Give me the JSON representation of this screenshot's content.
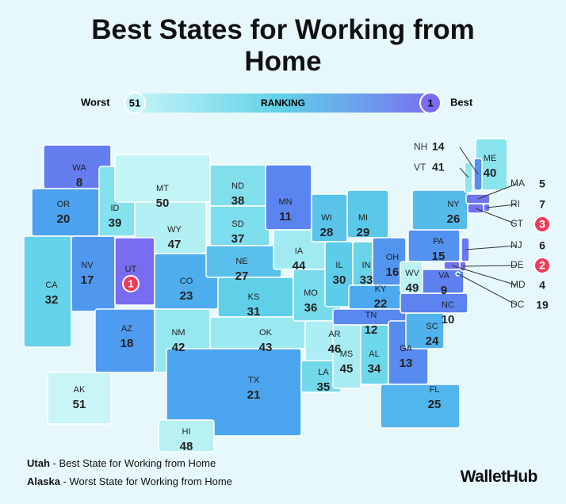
{
  "title": "Best States for Working from Home",
  "legend": {
    "worst_label": "Worst",
    "worst_rank": 51,
    "scale_label": "RANKING",
    "best_rank": 1,
    "best_label": "Best"
  },
  "states": [
    {
      "code": "WA",
      "rank": 8
    },
    {
      "code": "OR",
      "rank": 20
    },
    {
      "code": "CA",
      "rank": 32
    },
    {
      "code": "NV",
      "rank": 17
    },
    {
      "code": "ID",
      "rank": 39
    },
    {
      "code": "MT",
      "rank": 50
    },
    {
      "code": "WY",
      "rank": 47
    },
    {
      "code": "UT",
      "rank": 1
    },
    {
      "code": "CO",
      "rank": 23
    },
    {
      "code": "AZ",
      "rank": 18
    },
    {
      "code": "NM",
      "rank": 42
    },
    {
      "code": "ND",
      "rank": 38
    },
    {
      "code": "SD",
      "rank": 37
    },
    {
      "code": "NE",
      "rank": 27
    },
    {
      "code": "KS",
      "rank": 31
    },
    {
      "code": "OK",
      "rank": 43
    },
    {
      "code": "TX",
      "rank": 21
    },
    {
      "code": "MN",
      "rank": 11
    },
    {
      "code": "IA",
      "rank": 44
    },
    {
      "code": "MO",
      "rank": 36
    },
    {
      "code": "AR",
      "rank": 46
    },
    {
      "code": "LA",
      "rank": 35
    },
    {
      "code": "WI",
      "rank": 28
    },
    {
      "code": "IL",
      "rank": 30
    },
    {
      "code": "MI",
      "rank": 29
    },
    {
      "code": "IN",
      "rank": 33
    },
    {
      "code": "OH",
      "rank": 16
    },
    {
      "code": "KY",
      "rank": 22
    },
    {
      "code": "TN",
      "rank": 12
    },
    {
      "code": "MS",
      "rank": 45
    },
    {
      "code": "AL",
      "rank": 34
    },
    {
      "code": "GA",
      "rank": 13
    },
    {
      "code": "FL",
      "rank": 25
    },
    {
      "code": "SC",
      "rank": 24
    },
    {
      "code": "NC",
      "rank": 10
    },
    {
      "code": "VA",
      "rank": 9
    },
    {
      "code": "WV",
      "rank": 49
    },
    {
      "code": "PA",
      "rank": 15
    },
    {
      "code": "NY",
      "rank": 26
    },
    {
      "code": "ME",
      "rank": 40
    },
    {
      "code": "AK",
      "rank": 51
    },
    {
      "code": "HI",
      "rank": 48
    },
    {
      "code": "NH",
      "rank": 14
    },
    {
      "code": "VT",
      "rank": 41
    },
    {
      "code": "MA",
      "rank": 5
    },
    {
      "code": "RI",
      "rank": 7
    },
    {
      "code": "CT",
      "rank": 3
    },
    {
      "code": "NJ",
      "rank": 6
    },
    {
      "code": "DE",
      "rank": 2
    },
    {
      "code": "MD",
      "rank": 4
    },
    {
      "code": "DC",
      "rank": 19
    }
  ],
  "footnotes": [
    {
      "state": "Utah",
      "text": "- Best State for Working from Home"
    },
    {
      "state": "Alaska",
      "text": "- Worst State for Working from Home"
    }
  ],
  "brand": "WalletHub"
}
